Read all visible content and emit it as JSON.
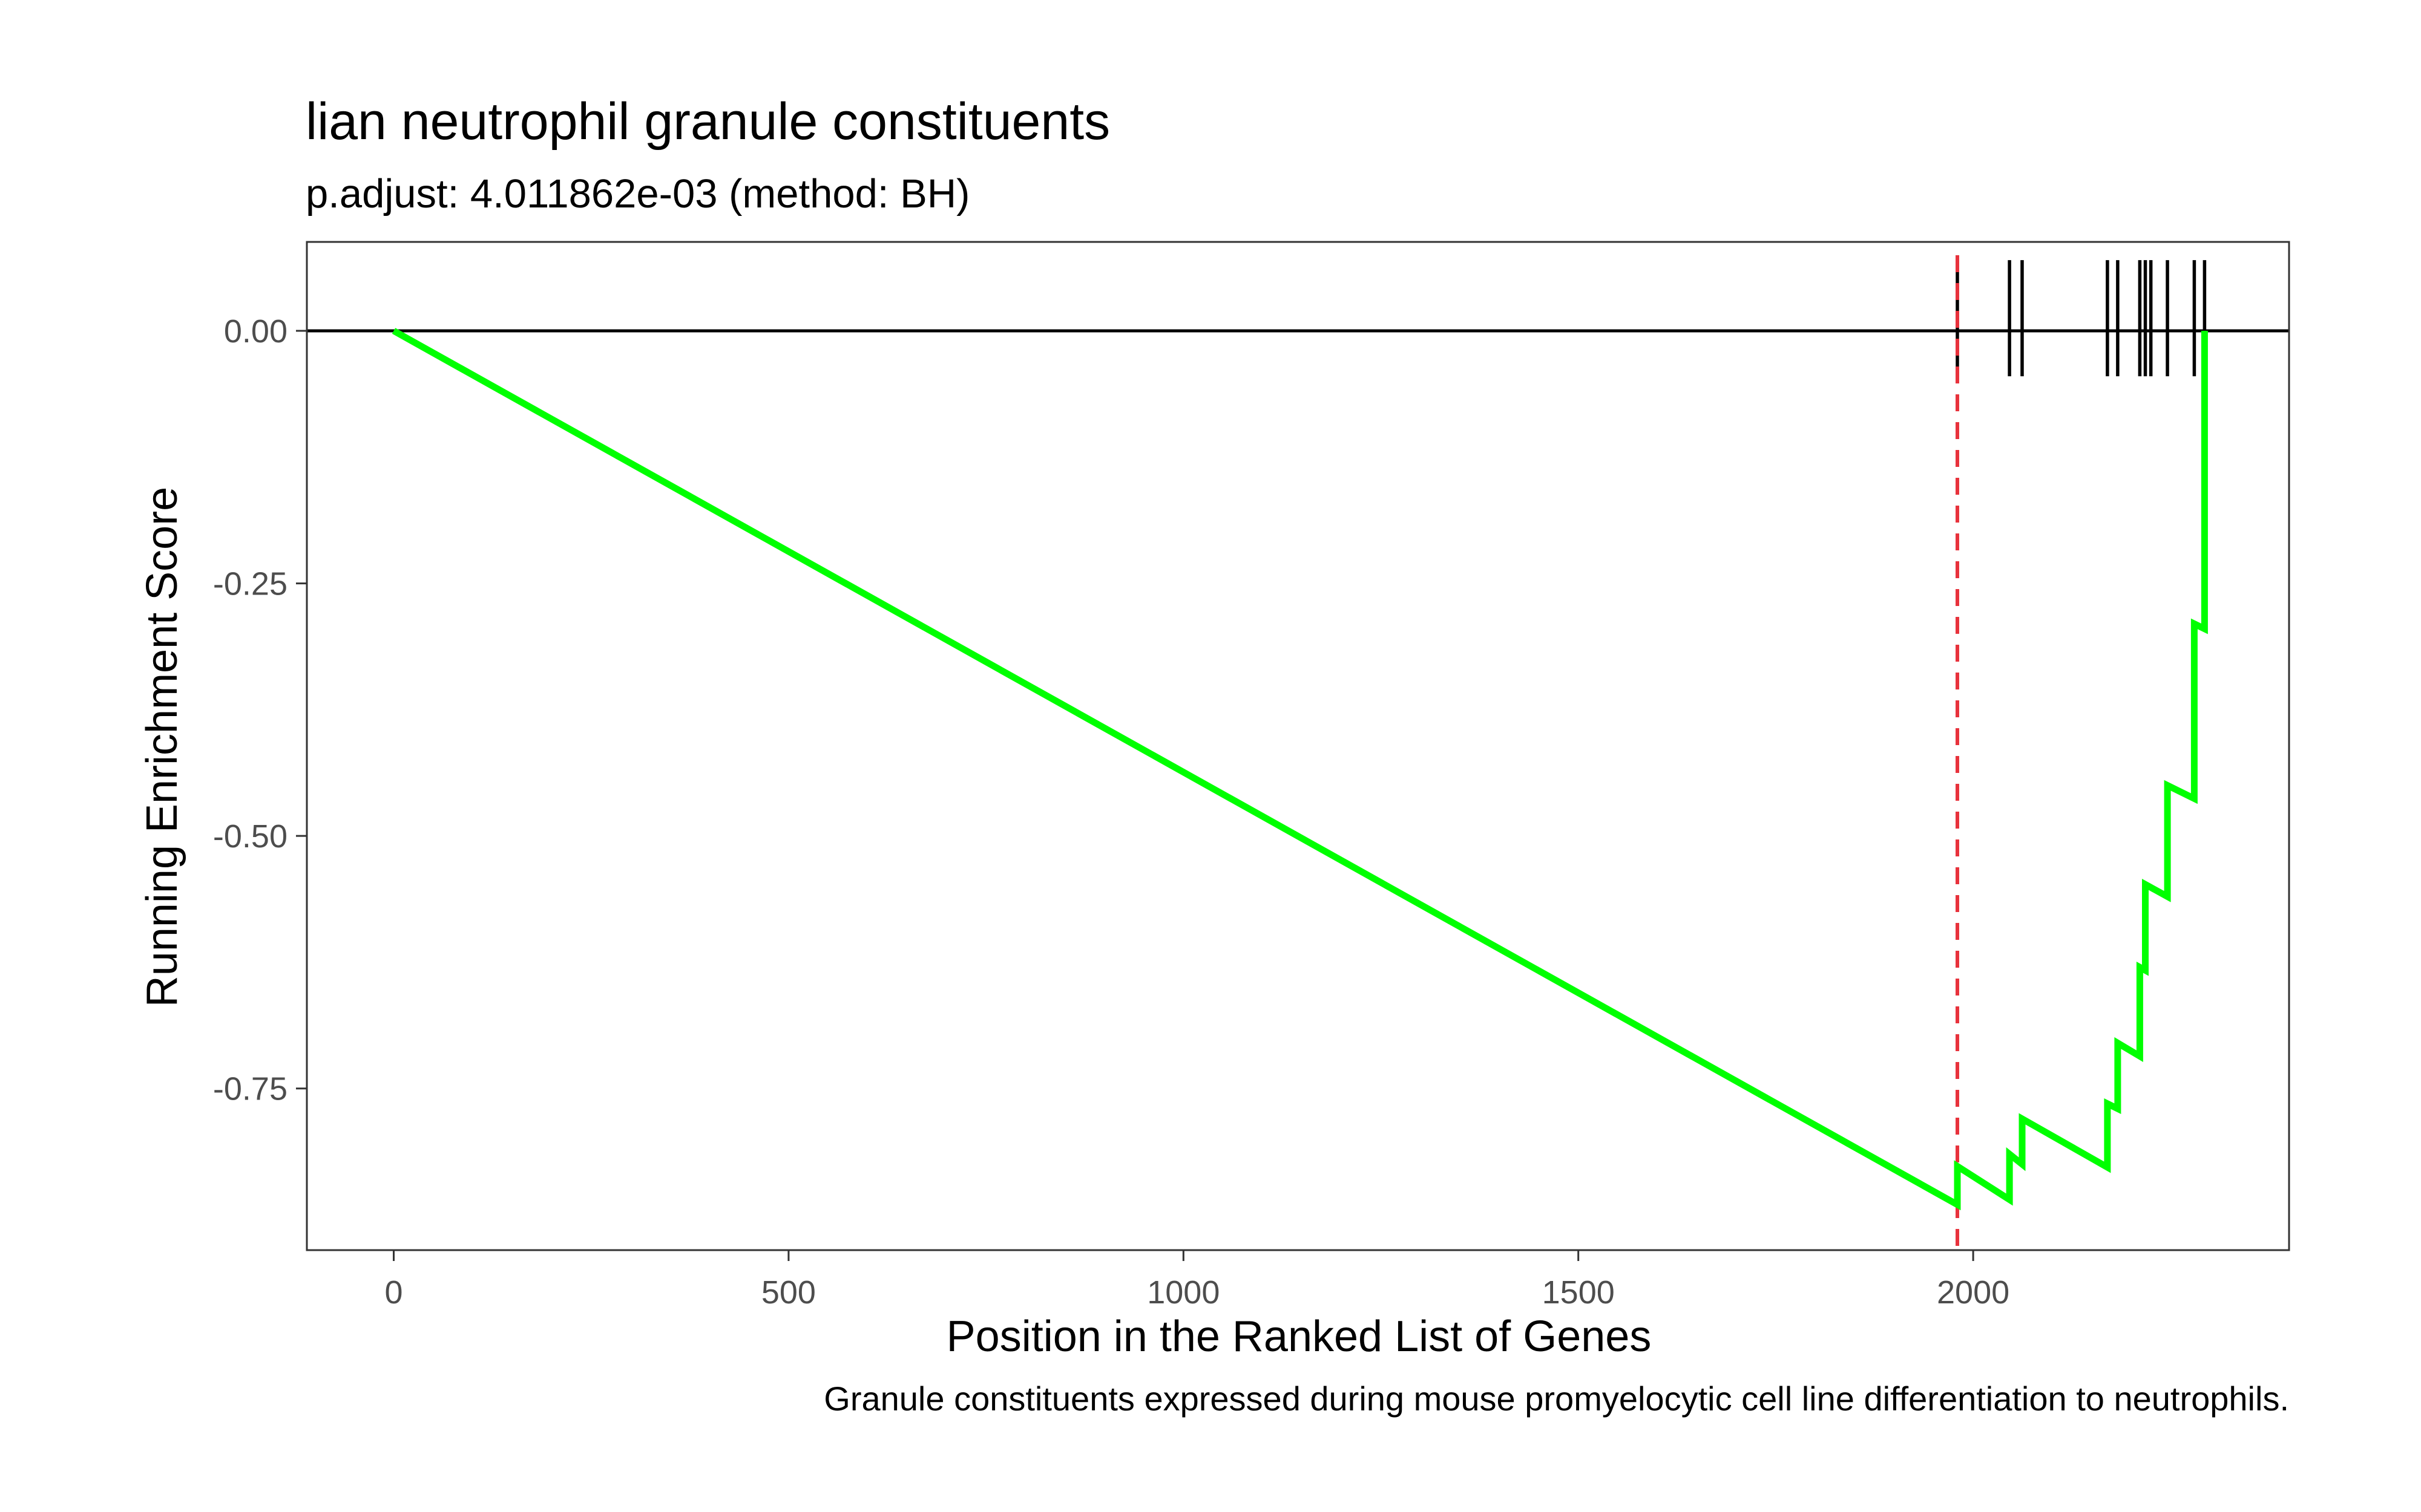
{
  "chart_data": {
    "type": "line",
    "title": "lian neutrophil granule constituents",
    "subtitle": "p.adjust: 4.011862e-03 (method: BH)",
    "xlabel": "Position in the Ranked List of Genes",
    "ylabel": "Running Enrichment Score",
    "caption": "Granule constituents expressed during mouse promyelocytic cell line differentiation to neutrophils.",
    "xlim": [
      -110,
      2400
    ],
    "ylim": [
      -0.91,
      0.088
    ],
    "x_ticks": [
      0,
      500,
      1000,
      1500,
      2000
    ],
    "x_tick_labels": [
      "0",
      "500",
      "1000",
      "1500",
      "2000"
    ],
    "y_ticks": [
      0.0,
      -0.25,
      -0.5,
      -0.75
    ],
    "y_tick_labels": [
      "0.00",
      "-0.25",
      "-0.50",
      "-0.75"
    ],
    "grid": false,
    "line_color": "#00ff00",
    "zero_line_color": "#000000",
    "max_deviation_line_color": "#e8323c",
    "max_deviation_x": 1980,
    "series": [
      {
        "values": [
          [
            0,
            0.0
          ],
          [
            1980,
            -0.865
          ],
          [
            1980,
            -0.827
          ],
          [
            2046,
            -0.86
          ],
          [
            2046,
            -0.815
          ],
          [
            2062,
            -0.825
          ],
          [
            2062,
            -0.78
          ],
          [
            2170,
            -0.828
          ],
          [
            2170,
            -0.765
          ],
          [
            2183,
            -0.77
          ],
          [
            2183,
            -0.705
          ],
          [
            2211,
            -0.718
          ],
          [
            2211,
            -0.63
          ],
          [
            2218,
            -0.633
          ],
          [
            2218,
            -0.548
          ],
          [
            2246,
            -0.56
          ],
          [
            2246,
            -0.45
          ],
          [
            2280,
            -0.463
          ],
          [
            2280,
            -0.29
          ],
          [
            2293,
            -0.295
          ],
          [
            2293,
            0.0
          ]
        ]
      }
    ],
    "hit_positions": [
      1980,
      2046,
      2062,
      2170,
      2183,
      2211,
      2218,
      2225,
      2246,
      2280,
      2293
    ]
  }
}
